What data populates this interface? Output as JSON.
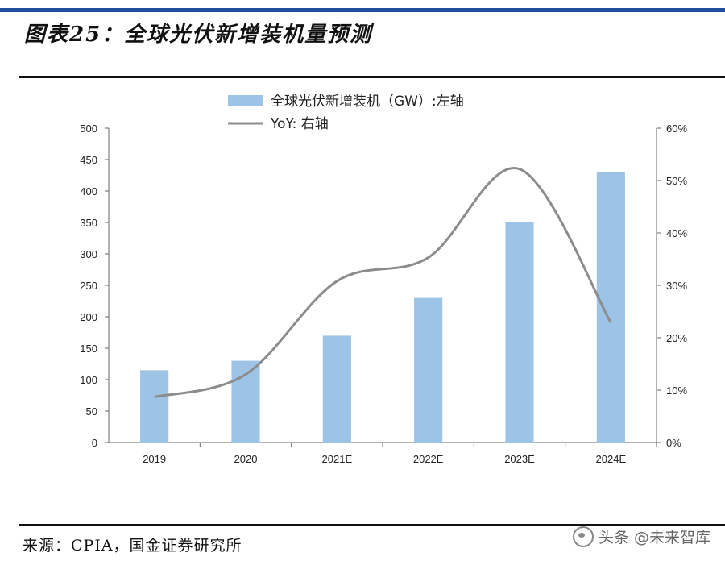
{
  "header": {
    "title": "图表25：全球光伏新增装机量预测"
  },
  "footer": {
    "source": "来源：CPIA，国金证券研究所"
  },
  "watermark": {
    "label": "头条 @未来智库"
  },
  "colors": {
    "bar": "#9dc3e6",
    "line": "#8c8c8c",
    "rule": "#1f4e9e"
  },
  "chart_data": {
    "type": "bar",
    "categories": [
      "2019",
      "2020",
      "2021E",
      "2022E",
      "2023E",
      "2024E"
    ],
    "series": [
      {
        "name": "全球光伏新增装机（GW）:左轴",
        "kind": "bar",
        "axis": "left",
        "values": [
          115,
          130,
          170,
          230,
          350,
          430
        ]
      },
      {
        "name": "YoY: 右轴",
        "kind": "line",
        "axis": "right",
        "values": [
          8.7,
          13.0,
          30.8,
          35.3,
          52.2,
          22.9
        ]
      }
    ],
    "y_left": {
      "min": 0,
      "max": 500,
      "ticks": [
        "0",
        "50",
        "100",
        "150",
        "200",
        "250",
        "300",
        "350",
        "400",
        "450",
        "500"
      ]
    },
    "y_right": {
      "min": 0,
      "max": 60,
      "ticks": [
        "0%",
        "10%",
        "20%",
        "30%",
        "40%",
        "50%",
        "60%"
      ]
    },
    "legend_position": "top-center"
  }
}
